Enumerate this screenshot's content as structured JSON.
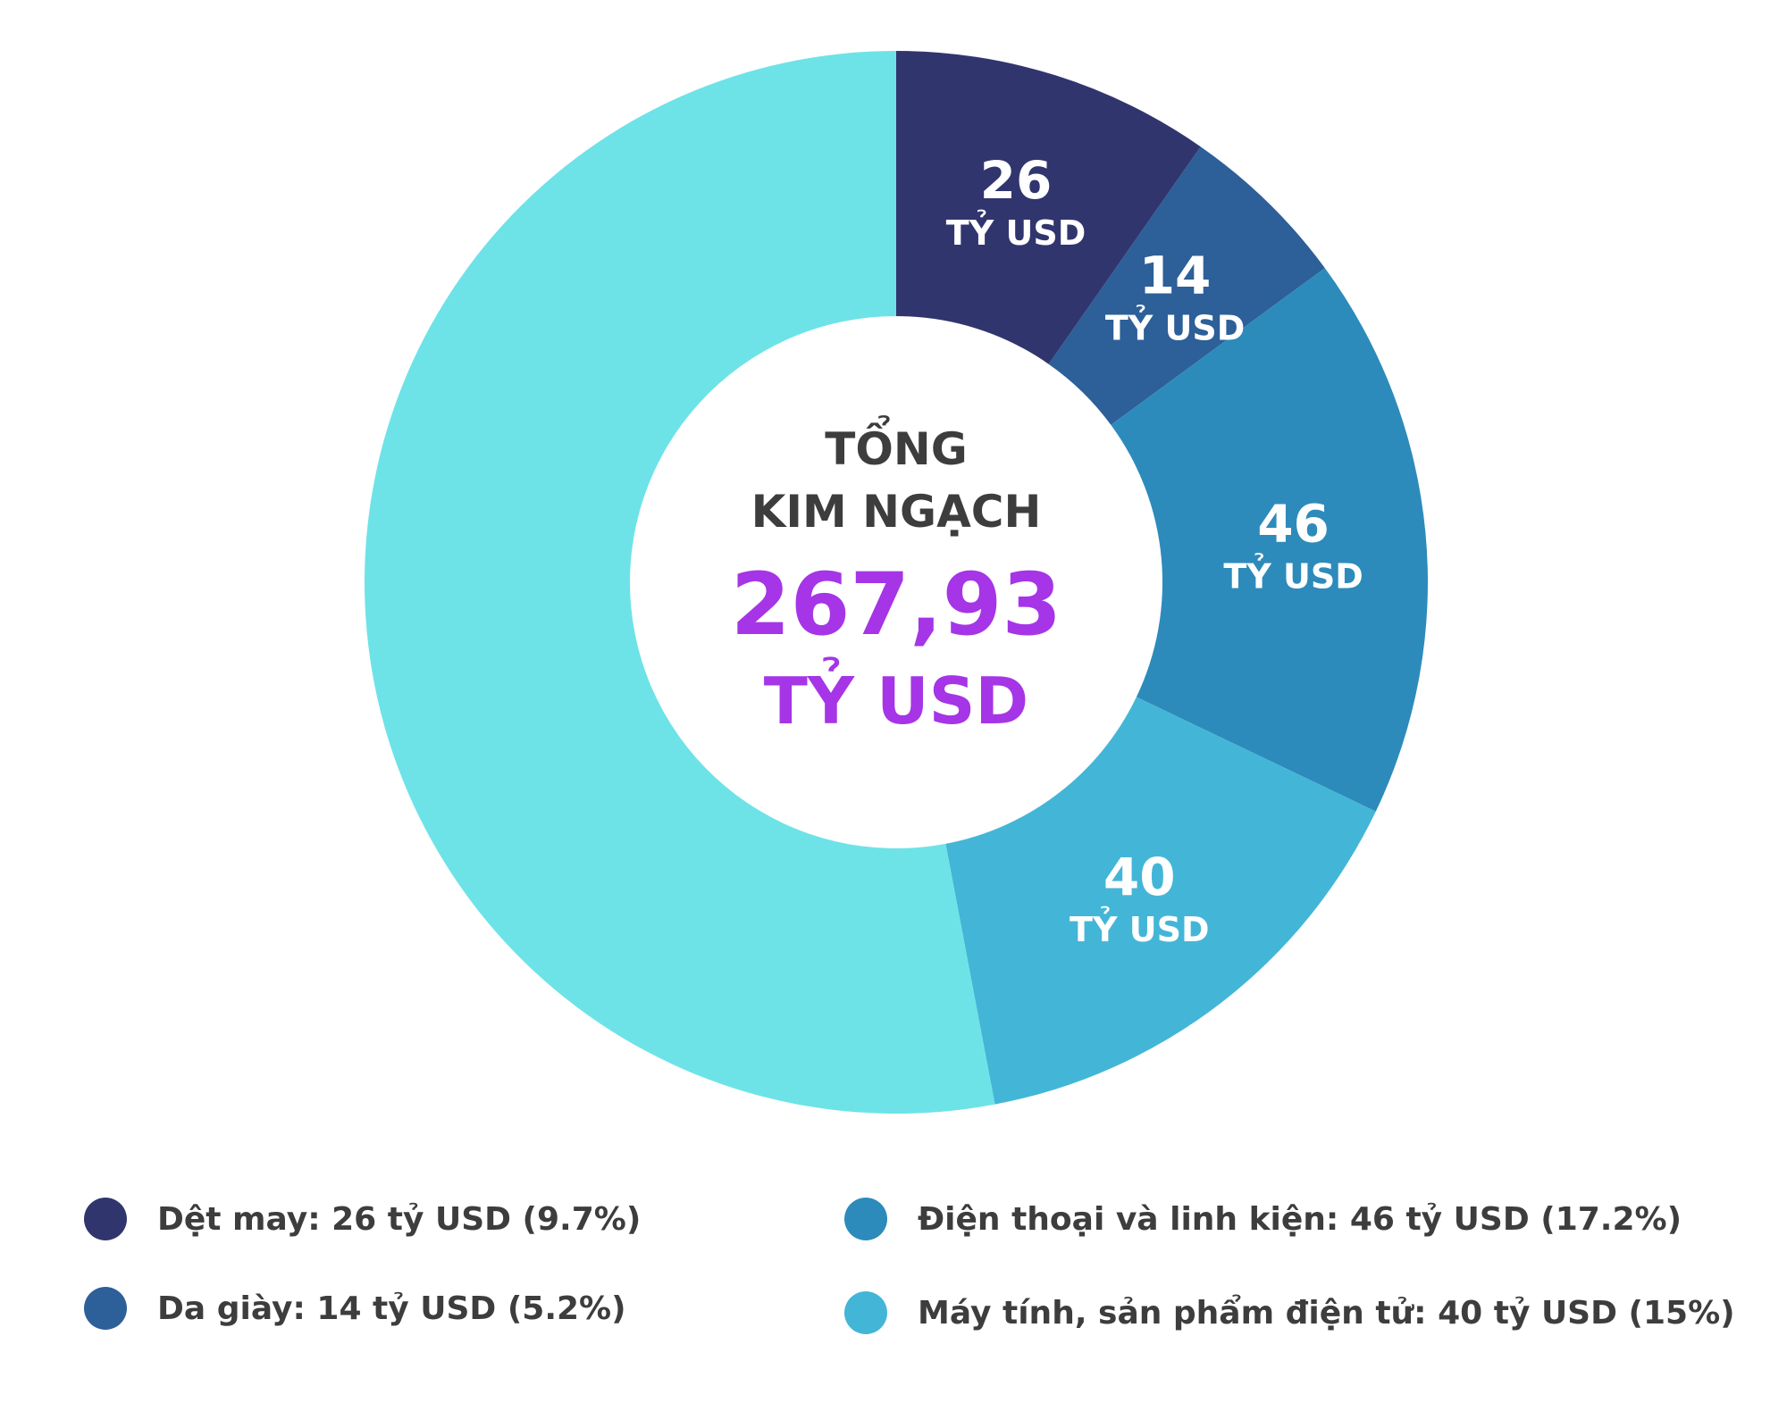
{
  "chart_data": {
    "type": "pie",
    "donut": true,
    "center": {
      "title_line1": "TỔNG",
      "title_line2": "KIM NGẠCH",
      "total": "267,93",
      "unit": "TỶ USD"
    },
    "slices": [
      {
        "name": "Dệt may",
        "value": 26,
        "value_label": "26",
        "unit_label": "TỶ USD",
        "color": "#31356e",
        "legend": "Dệt may: 26 tỷ USD (9.7%)"
      },
      {
        "name": "Da giày",
        "value": 14,
        "value_label": "14",
        "unit_label": "TỶ USD",
        "color": "#2d5f98",
        "legend": "Da giày: 14 tỷ USD (5.2%)"
      },
      {
        "name": "Điện thoại và linh kiện",
        "value": 46,
        "value_label": "46",
        "unit_label": "TỶ USD",
        "color": "#2d8bbb",
        "legend": "Điện thoại và linh kiện: 46 tỷ USD (17.2%)"
      },
      {
        "name": "Máy tính, sản phẩm điện tử",
        "value": 40,
        "value_label": "40",
        "unit_label": "TỶ USD",
        "color": "#43b6d7",
        "legend": "Máy tính, sản phẩm điện tử: 40 tỷ USD (15%)"
      },
      {
        "name": "",
        "value": 141.93,
        "value_label": "",
        "unit_label": "",
        "color": "#6de3e8",
        "legend": ""
      }
    ],
    "total": 267.93
  }
}
